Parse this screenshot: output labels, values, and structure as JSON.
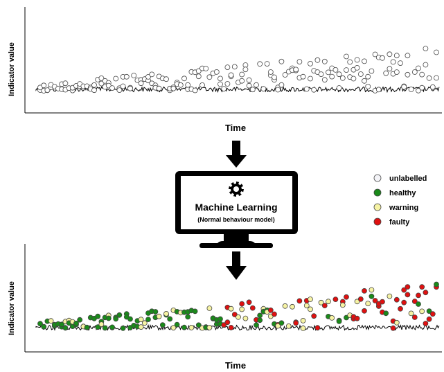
{
  "top_plot": {
    "ylabel": "Indicator value",
    "xlabel": "Time"
  },
  "bottom_plot": {
    "ylabel": "Indicator value",
    "xlabel": "Time"
  },
  "model": {
    "title": "Machine Learning",
    "subtitle": "(Normal behaviour model)",
    "icon": "gear-icon"
  },
  "legend": [
    {
      "label": "unlabelled",
      "color": "#f4f4f8"
    },
    {
      "label": "healthy",
      "color": "#1a8a1a"
    },
    {
      "label": "warning",
      "color": "#f6f3a4"
    },
    {
      "label": "faulty",
      "color": "#e01010"
    }
  ],
  "colors": {
    "unlabelled": "#ffffff",
    "healthy": "#1a8a1a",
    "warning": "#f6f3a4",
    "faulty": "#e01010"
  }
}
